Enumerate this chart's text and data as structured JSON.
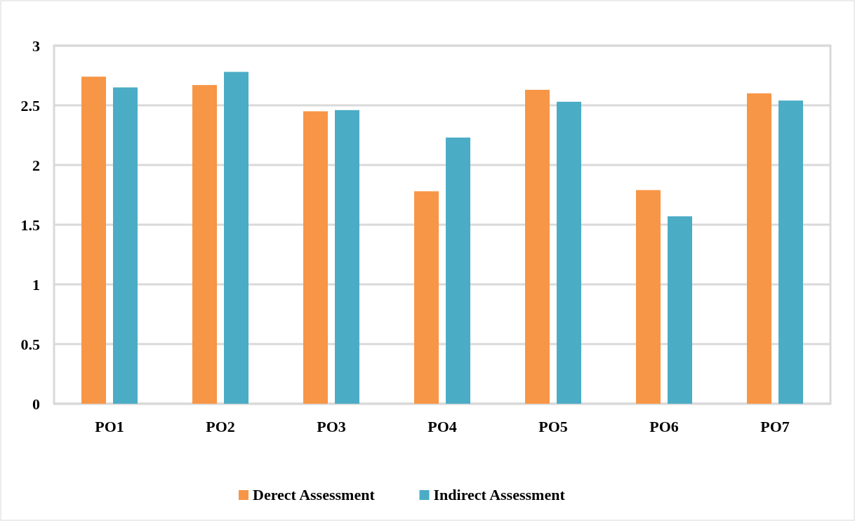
{
  "chart_data": {
    "type": "bar",
    "categories": [
      "PO1",
      "PO2",
      "PO3",
      "PO4",
      "PO5",
      "PO6",
      "PO7"
    ],
    "series": [
      {
        "name": "Derect Assessment",
        "color": "#f79646",
        "values": [
          2.74,
          2.67,
          2.45,
          1.78,
          2.63,
          1.79,
          2.6
        ]
      },
      {
        "name": "Indirect Assessment",
        "color": "#4bacc6",
        "values": [
          2.65,
          2.78,
          2.46,
          2.23,
          2.53,
          1.57,
          2.54
        ]
      }
    ],
    "ylim": [
      0,
      3
    ],
    "yticks": [
      0,
      0.5,
      1,
      1.5,
      2,
      2.5,
      3
    ],
    "grid": "y",
    "legend": "bottom"
  }
}
